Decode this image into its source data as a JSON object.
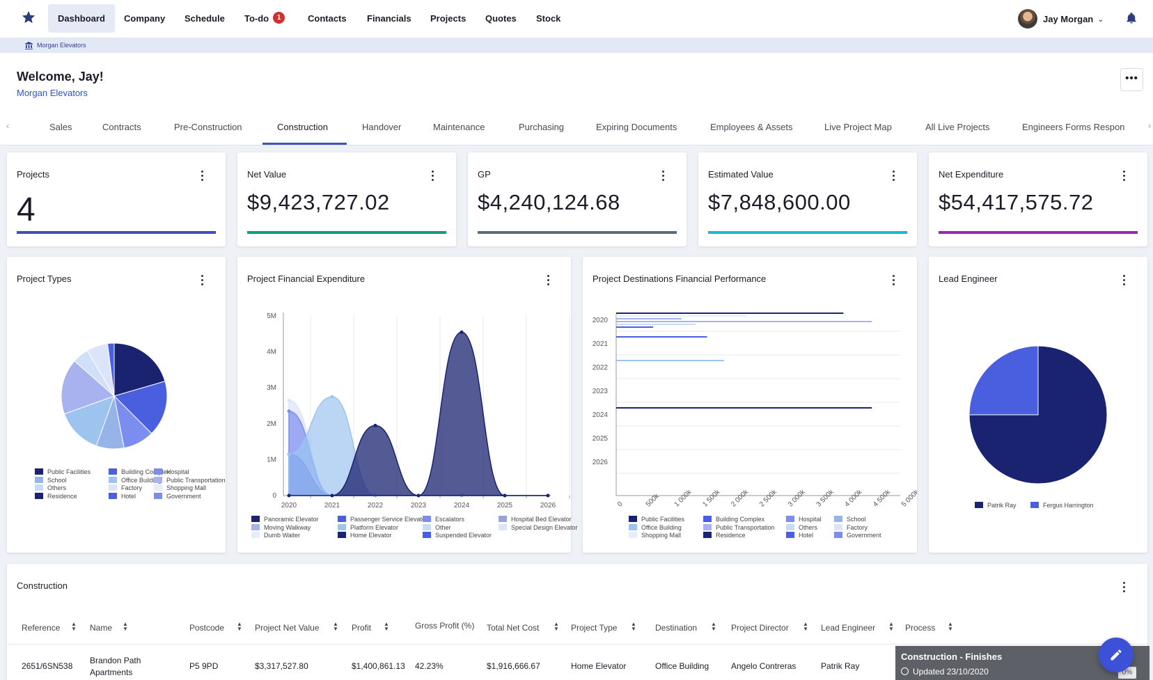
{
  "nav": {
    "items": [
      {
        "label": "Dashboard",
        "active": true
      },
      {
        "label": "Company"
      },
      {
        "label": "Schedule"
      },
      {
        "label": "To-do",
        "badge": "1"
      },
      {
        "label": "Contacts"
      },
      {
        "label": "Financials"
      },
      {
        "label": "Projects"
      },
      {
        "label": "Quotes"
      },
      {
        "label": "Stock"
      }
    ],
    "user": "Jay Morgan"
  },
  "breadcrumb": "Morgan Elevators",
  "header": {
    "welcome": "Welcome, Jay!",
    "company": "Morgan Elevators"
  },
  "tabs": [
    "Sales",
    "Contracts",
    "Pre-Construction",
    "Construction",
    "Handover",
    "Maintenance",
    "Purchasing",
    "Expiring Documents",
    "Employees & Assets",
    "Live Project Map",
    "All Live Projects",
    "Engineers Forms Respon"
  ],
  "active_tab": "Construction",
  "kpis": [
    {
      "title": "Projects",
      "value": "4",
      "color": "#3f51b5"
    },
    {
      "title": "Net Value",
      "value": "$9,423,727.02",
      "color": "#0f9d77"
    },
    {
      "title": "GP",
      "value": "$4,240,124.68",
      "color": "#5a6b7b"
    },
    {
      "title": "Estimated Value",
      "value": "$7,848,600.00",
      "color": "#1ab9d3"
    },
    {
      "title": "Net Expenditure",
      "value": "$54,417,575.72",
      "color": "#9c27b0"
    }
  ],
  "colors": {
    "navy": "#1a2370",
    "blue": "#4a5fe0",
    "mid": "#7b8ef0",
    "lilac": "#a8b2ef",
    "sky": "#9cc4ef",
    "pale": "#c7dcf8",
    "pale2": "#dbe4fb",
    "accent": "#3c50c4"
  },
  "charts": {
    "project_types": {
      "title": "Project Types",
      "chart_data": {
        "type": "pie",
        "slices": [
          {
            "label": "Residence",
            "value": 20.5,
            "color": "#1a2370"
          },
          {
            "label": "Building Complex",
            "value": 17,
            "color": "#4a5fe0"
          },
          {
            "label": "Government",
            "value": 9.5,
            "color": "#7b8ef0"
          },
          {
            "label": "Hospital",
            "value": 8.5,
            "color": "#97b4e8"
          },
          {
            "label": "Office Building",
            "value": 14,
            "color": "#9cc4ef"
          },
          {
            "label": "Public Transportation",
            "value": 17,
            "color": "#a8b2ef"
          },
          {
            "label": "Others",
            "value": 5,
            "color": "#cfe0f8"
          },
          {
            "label": "Factory",
            "value": 6.5,
            "color": "#dbe4fb"
          },
          {
            "label": "Hotel",
            "value": 2,
            "color": "#4a5fe0"
          }
        ],
        "legend": [
          {
            "label": "Public Facilities",
            "color": "#1a2370"
          },
          {
            "label": "Building Complex",
            "color": "#4a5fe0"
          },
          {
            "label": "Hospital",
            "color": "#7b8ef0"
          },
          {
            "label": "School",
            "color": "#97b4e8"
          },
          {
            "label": "Office Building",
            "color": "#9cc4ef"
          },
          {
            "label": "Public Transportation",
            "color": "#a8b2ef"
          },
          {
            "label": "Others",
            "color": "#c7dcf8"
          },
          {
            "label": "Factory",
            "color": "#dbe4fb"
          },
          {
            "label": "Shopping Mall",
            "color": "#e6eefc"
          },
          {
            "label": "Residence",
            "color": "#1a2370"
          },
          {
            "label": "Hotel",
            "color": "#4a5fe0"
          },
          {
            "label": "Government",
            "color": "#7b8ef0"
          }
        ]
      }
    },
    "financial_expenditure": {
      "title": "Project Financial Expenditure",
      "chart_data": {
        "type": "area",
        "x": [
          "2020",
          "2021",
          "2022",
          "2023",
          "2024",
          "2025",
          "2026"
        ],
        "y_ticks": [
          "0",
          "1M",
          "2M",
          "3M",
          "4M",
          "5M"
        ],
        "ylim": [
          0,
          5000000
        ],
        "series": [
          {
            "name": "Panoramic Elevator",
            "color": "#1a2370",
            "values": [
              0,
              0,
              1950000,
              0,
              4550000,
              0,
              0
            ]
          },
          {
            "name": "Hospital Bed Elevator",
            "color": "#9cc4ef",
            "values": [
              1150000,
              2750000,
              0,
              0,
              0,
              0,
              0
            ]
          },
          {
            "name": "Passenger Service Elevator",
            "color": "#4a5fe0",
            "values": [
              1150000,
              0,
              0,
              0,
              0,
              0,
              0
            ]
          },
          {
            "name": "Escalators",
            "color": "#7b8ef0",
            "values": [
              2350000,
              0,
              0,
              0,
              0,
              0,
              0
            ]
          },
          {
            "name": "Special Design Elevator",
            "color": "#dbe4fb",
            "values": [
              2650000,
              0,
              0,
              0,
              0,
              0,
              0
            ]
          }
        ],
        "legend": [
          {
            "label": "Panoramic Elevator",
            "color": "#1a2370"
          },
          {
            "label": "Passenger Service Elevator",
            "color": "#4a5fe0"
          },
          {
            "label": "Escalators",
            "color": "#7b8ef0"
          },
          {
            "label": "Hospital Bed Elevator",
            "color": "#97a4d8"
          },
          {
            "label": "Moving Walkway",
            "color": "#a8b2ef"
          },
          {
            "label": "Platform Elevator",
            "color": "#9cc4ef"
          },
          {
            "label": "Other",
            "color": "#c7dcf8"
          },
          {
            "label": "Special Design Elevator",
            "color": "#dbe4fb"
          },
          {
            "label": "Dumb Waiter",
            "color": "#e6eefc"
          },
          {
            "label": "Home Elevator",
            "color": "#1a2370"
          },
          {
            "label": "Suspended Elevator",
            "color": "#4a5fe0"
          }
        ]
      }
    },
    "destinations": {
      "title": "Project Destinations Financial Performance",
      "chart_data": {
        "type": "bar",
        "orientation": "horizontal",
        "categories": [
          "2020",
          "2021",
          "2022",
          "2023",
          "2024",
          "2025",
          "2026"
        ],
        "x_ticks": [
          "0",
          "500k",
          "1 000k",
          "1 500k",
          "2 000k",
          "2 500k",
          "3 000k",
          "3 500k",
          "4 000k",
          "4 500k",
          "5 000k"
        ],
        "xlim": [
          0,
          5000000
        ],
        "bars": [
          {
            "category": "2020",
            "series": "Residence",
            "value": 4000000,
            "color": "#1a2370"
          },
          {
            "category": "2020",
            "series": "Others",
            "value": 2300000,
            "color": "#e6eefc"
          },
          {
            "category": "2020",
            "series": "Hospital",
            "value": 1150000,
            "color": "#a8b2ef"
          },
          {
            "category": "2020",
            "series": "Public Transportation",
            "value": 4500000,
            "color": "#a8b2ef"
          },
          {
            "category": "2020",
            "series": "Office Building",
            "value": 1400000,
            "color": "#c7dcf8"
          },
          {
            "category": "2020",
            "series": "Building Complex",
            "value": 650000,
            "color": "#4a5fe0"
          },
          {
            "category": "2021",
            "series": "Building Complex",
            "value": 1600000,
            "color": "#4a5fe0"
          },
          {
            "category": "2022",
            "series": "Office Building",
            "value": 1900000,
            "color": "#9cc4ef"
          },
          {
            "category": "2024",
            "series": "Residence",
            "value": 4500000,
            "color": "#1a2370"
          }
        ],
        "legend": [
          {
            "label": "Public Facilities",
            "color": "#1a2370"
          },
          {
            "label": "Building Complex",
            "color": "#4a5fe0"
          },
          {
            "label": "Hospital",
            "color": "#7b8ef0"
          },
          {
            "label": "School",
            "color": "#97b4e8"
          },
          {
            "label": "Office Building",
            "color": "#9cc4ef"
          },
          {
            "label": "Public Transportation",
            "color": "#a8b2ef"
          },
          {
            "label": "Others",
            "color": "#c7dcf8"
          },
          {
            "label": "Factory",
            "color": "#dbe4fb"
          },
          {
            "label": "Shopping Mall",
            "color": "#e6eefc"
          },
          {
            "label": "Residence",
            "color": "#1a2370"
          },
          {
            "label": "Hotel",
            "color": "#4a5fe0"
          },
          {
            "label": "Government",
            "color": "#7b8ef0"
          }
        ]
      }
    },
    "lead_engineer": {
      "title": "Lead Engineer",
      "chart_data": {
        "type": "pie",
        "slices": [
          {
            "label": "Patrik Ray",
            "value": 75,
            "color": "#1a2370"
          },
          {
            "label": "Fergus Harrington",
            "value": 25,
            "color": "#4a5fe0"
          }
        ],
        "legend": [
          {
            "label": "Patrik Ray",
            "color": "#1a2370"
          },
          {
            "label": "Fergus Harrington",
            "color": "#4a5fe0"
          }
        ]
      }
    }
  },
  "table": {
    "title": "Construction",
    "columns": [
      "Reference",
      "Name",
      "Postcode",
      "Project Net Value",
      "Profit",
      "Gross Profit (%)",
      "Total Net Cost",
      "Project Type",
      "Destination",
      "Project Director",
      "Lead Engineer",
      "Process"
    ],
    "rows": [
      {
        "reference": "2651/6SN538",
        "name_line1": "Brandon Path",
        "name_line2": "Apartments",
        "postcode": "P5 9PD",
        "net_value": "$3,317,527.80",
        "profit": "$1,400,861.13",
        "gp": "42.23%",
        "net_cost": "$1,916,666.67",
        "type": "Home Elevator",
        "destination": "Office Building",
        "director": "Angelo Contreras",
        "engineer": "Patrik Ray",
        "process": "Construction - Finishes",
        "updated": "Updated 23/10/2020",
        "percent": "0%"
      }
    ]
  }
}
